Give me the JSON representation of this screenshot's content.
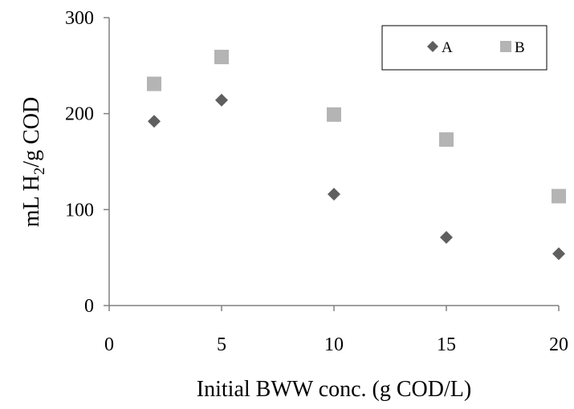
{
  "chart_data": {
    "type": "scatter",
    "xlabel": "Initial BWW conc. (g COD/L)",
    "ylabel": {
      "prefix": "mL H",
      "sub": "2",
      "suffix": "/g COD"
    },
    "xlim": [
      0,
      20
    ],
    "ylim": [
      0,
      300
    ],
    "x_ticks": [
      "0",
      "5",
      "10",
      "15",
      "20"
    ],
    "y_ticks": [
      "0",
      "100",
      "200",
      "300"
    ],
    "grid": false,
    "legend_position": "top-right",
    "series": [
      {
        "name": "A",
        "marker": "diamond",
        "color": "#5f5f5f",
        "points": [
          {
            "x": 2,
            "y": 192
          },
          {
            "x": 5,
            "y": 214
          },
          {
            "x": 10,
            "y": 116
          },
          {
            "x": 15,
            "y": 71
          },
          {
            "x": 20,
            "y": 54
          }
        ]
      },
      {
        "name": "B",
        "marker": "square",
        "color": "#b4b4b4",
        "points": [
          {
            "x": 2,
            "y": 231
          },
          {
            "x": 5,
            "y": 259
          },
          {
            "x": 10,
            "y": 199
          },
          {
            "x": 15,
            "y": 173
          },
          {
            "x": 20,
            "y": 114
          }
        ]
      }
    ]
  }
}
